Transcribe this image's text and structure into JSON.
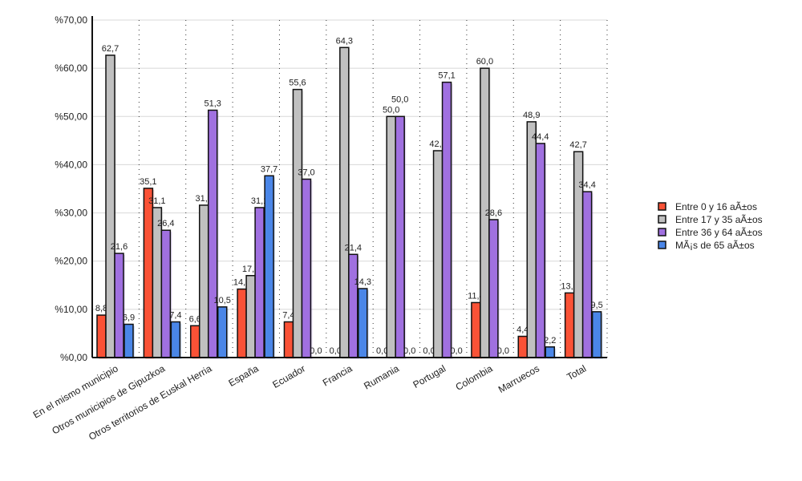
{
  "chart_data": {
    "type": "bar",
    "categories": [
      "En el mismo municipio",
      "Otros municipios de Gipuzkoa",
      "Otros territorios de Euskal Herria",
      "España",
      "Ecuador",
      "Francia",
      "Rumania",
      "Portugal",
      "Colombia",
      "Marruecos",
      "Total"
    ],
    "series": [
      {
        "name": "Entre 0 y 16 aÃ±os",
        "color": "#fa5236",
        "values": [
          8.8,
          35.1,
          6.6,
          14.2,
          7.4,
          0.0,
          0.0,
          0.0,
          11.4,
          4.4,
          13.4
        ]
      },
      {
        "name": "Entre 17 y 35 aÃ±os",
        "color": "#c0c0c0",
        "values": [
          62.7,
          31.1,
          31.6,
          17.0,
          55.6,
          64.3,
          50.0,
          42.9,
          60.0,
          48.9,
          42.7
        ]
      },
      {
        "name": "Entre 36 y 64 aÃ±os",
        "color": "#a070e0",
        "values": [
          21.6,
          26.4,
          51.3,
          31.1,
          37.0,
          21.4,
          50.0,
          57.1,
          28.6,
          44.4,
          34.4
        ]
      },
      {
        "name": "MÃ¡s de 65 aÃ±os",
        "color": "#4a86e8",
        "values": [
          6.9,
          7.4,
          10.5,
          37.7,
          0.0,
          14.3,
          0.0,
          0.0,
          0.0,
          2.2,
          9.5
        ]
      }
    ],
    "ylim": [
      0,
      70
    ],
    "yticks": [
      "%0,00",
      "%10,00",
      "%20,00",
      "%30,00",
      "%40,00",
      "%50,00",
      "%60,00",
      "%70,00"
    ],
    "grid": true,
    "legend_position": "right"
  }
}
